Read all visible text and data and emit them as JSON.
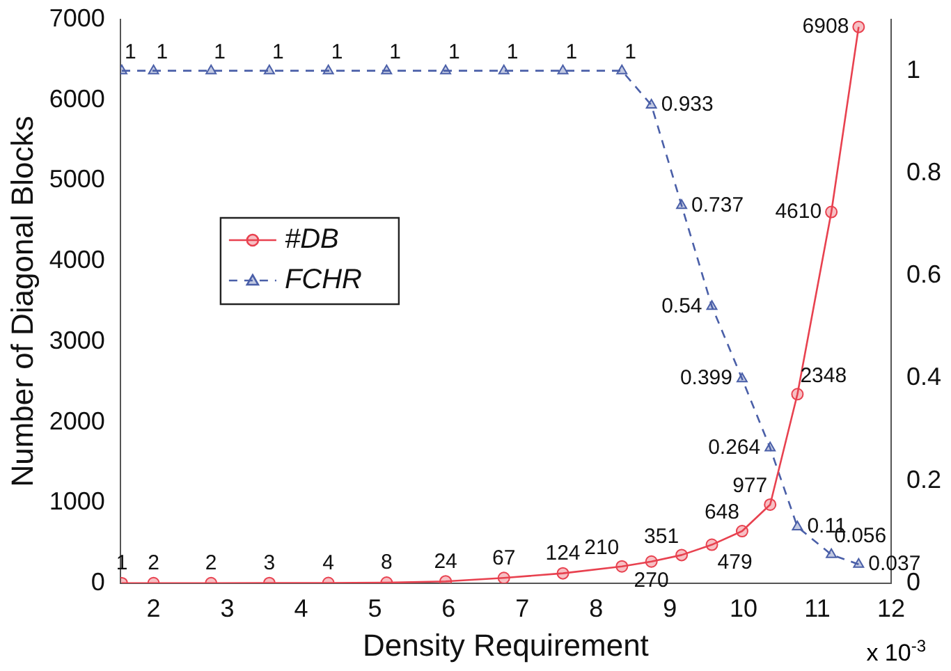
{
  "chart_data": {
    "type": "line",
    "xlabel": "Density Requirement",
    "ylabel": "Number of Diagonal Blocks",
    "x": [
      1.57,
      2.0,
      2.78,
      3.57,
      4.37,
      5.16,
      5.96,
      6.75,
      7.55,
      8.35,
      8.75,
      9.16,
      9.57,
      9.98,
      10.36,
      10.73,
      11.19,
      11.56
    ],
    "series": [
      {
        "name": "#DB",
        "color": "#e8414f",
        "marker": "circle",
        "line_style": "solid",
        "values": [
          1,
          2,
          2,
          3,
          4,
          8,
          24,
          67,
          124,
          210,
          270,
          351,
          479,
          648,
          977,
          2348,
          4610,
          6908
        ]
      },
      {
        "name": "FCHR",
        "color": "#4a5fa8",
        "marker": "triangle",
        "line_style": "dashed",
        "axis": "y2",
        "values": [
          1,
          1,
          1,
          1,
          1,
          1,
          1,
          1,
          1,
          1,
          0.933,
          0.737,
          0.54,
          0.399,
          0.264,
          0.11,
          0.056,
          0.037
        ]
      }
    ],
    "xlim": [
      1.55,
      12
    ],
    "xticks": [
      2,
      3,
      4,
      5,
      6,
      7,
      8,
      9,
      10,
      11,
      12
    ],
    "ylim": [
      0,
      7000
    ],
    "yticks": [
      0,
      1000,
      2000,
      3000,
      4000,
      5000,
      6000,
      7000
    ],
    "y2lim": [
      0,
      1.1
    ],
    "y2ticks": [
      0,
      0.2,
      0.4,
      0.6,
      0.8,
      1
    ],
    "annotations": [
      "x 10$^{-3}$"
    ],
    "data_labels": true,
    "legend": "left",
    "grid": false
  }
}
